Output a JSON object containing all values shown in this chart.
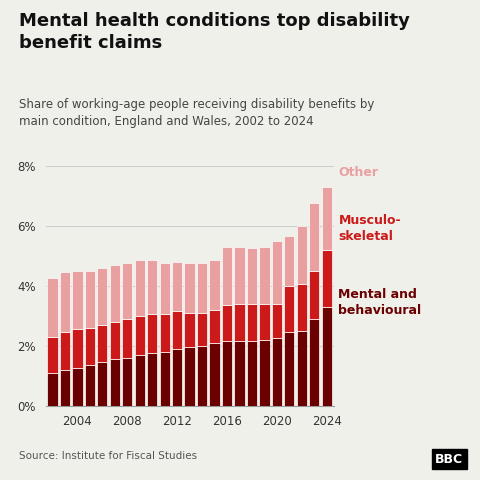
{
  "title": "Mental health conditions top disability\nbenefit claims",
  "subtitle": "Share of working-age people receiving disability benefits by\nmain condition, England and Wales, 2002 to 2024",
  "source": "Source: Institute for Fiscal Studies",
  "years": [
    2002,
    2003,
    2004,
    2005,
    2006,
    2007,
    2008,
    2009,
    2010,
    2011,
    2012,
    2013,
    2014,
    2015,
    2016,
    2017,
    2018,
    2019,
    2020,
    2021,
    2022,
    2023,
    2024
  ],
  "mental": [
    1.1,
    1.2,
    1.25,
    1.35,
    1.45,
    1.55,
    1.6,
    1.7,
    1.75,
    1.8,
    1.9,
    1.95,
    2.0,
    2.1,
    2.15,
    2.15,
    2.15,
    2.2,
    2.25,
    2.45,
    2.5,
    2.9,
    3.3
  ],
  "musculo": [
    1.2,
    1.25,
    1.3,
    1.25,
    1.25,
    1.25,
    1.3,
    1.3,
    1.3,
    1.25,
    1.25,
    1.15,
    1.1,
    1.1,
    1.2,
    1.25,
    1.25,
    1.2,
    1.15,
    1.55,
    1.55,
    1.6,
    1.9
  ],
  "other": [
    1.95,
    2.0,
    1.95,
    1.9,
    1.9,
    1.9,
    1.85,
    1.85,
    1.8,
    1.7,
    1.65,
    1.65,
    1.65,
    1.65,
    1.95,
    1.9,
    1.85,
    1.9,
    2.1,
    1.65,
    1.95,
    2.25,
    2.1
  ],
  "color_mental": "#6b0000",
  "color_musculo": "#cc1a1a",
  "color_other": "#e8a0a0",
  "ylim": [
    0,
    8
  ],
  "yticks": [
    0,
    2,
    4,
    6,
    8
  ],
  "ytick_labels": [
    "0%",
    "2%",
    "4%",
    "6%",
    "8%"
  ],
  "bg_color": "#f0f0eb",
  "bar_edge_color": "white",
  "title_fontsize": 13,
  "subtitle_fontsize": 8.5,
  "source_fontsize": 7.5,
  "label_fontsize": 9
}
